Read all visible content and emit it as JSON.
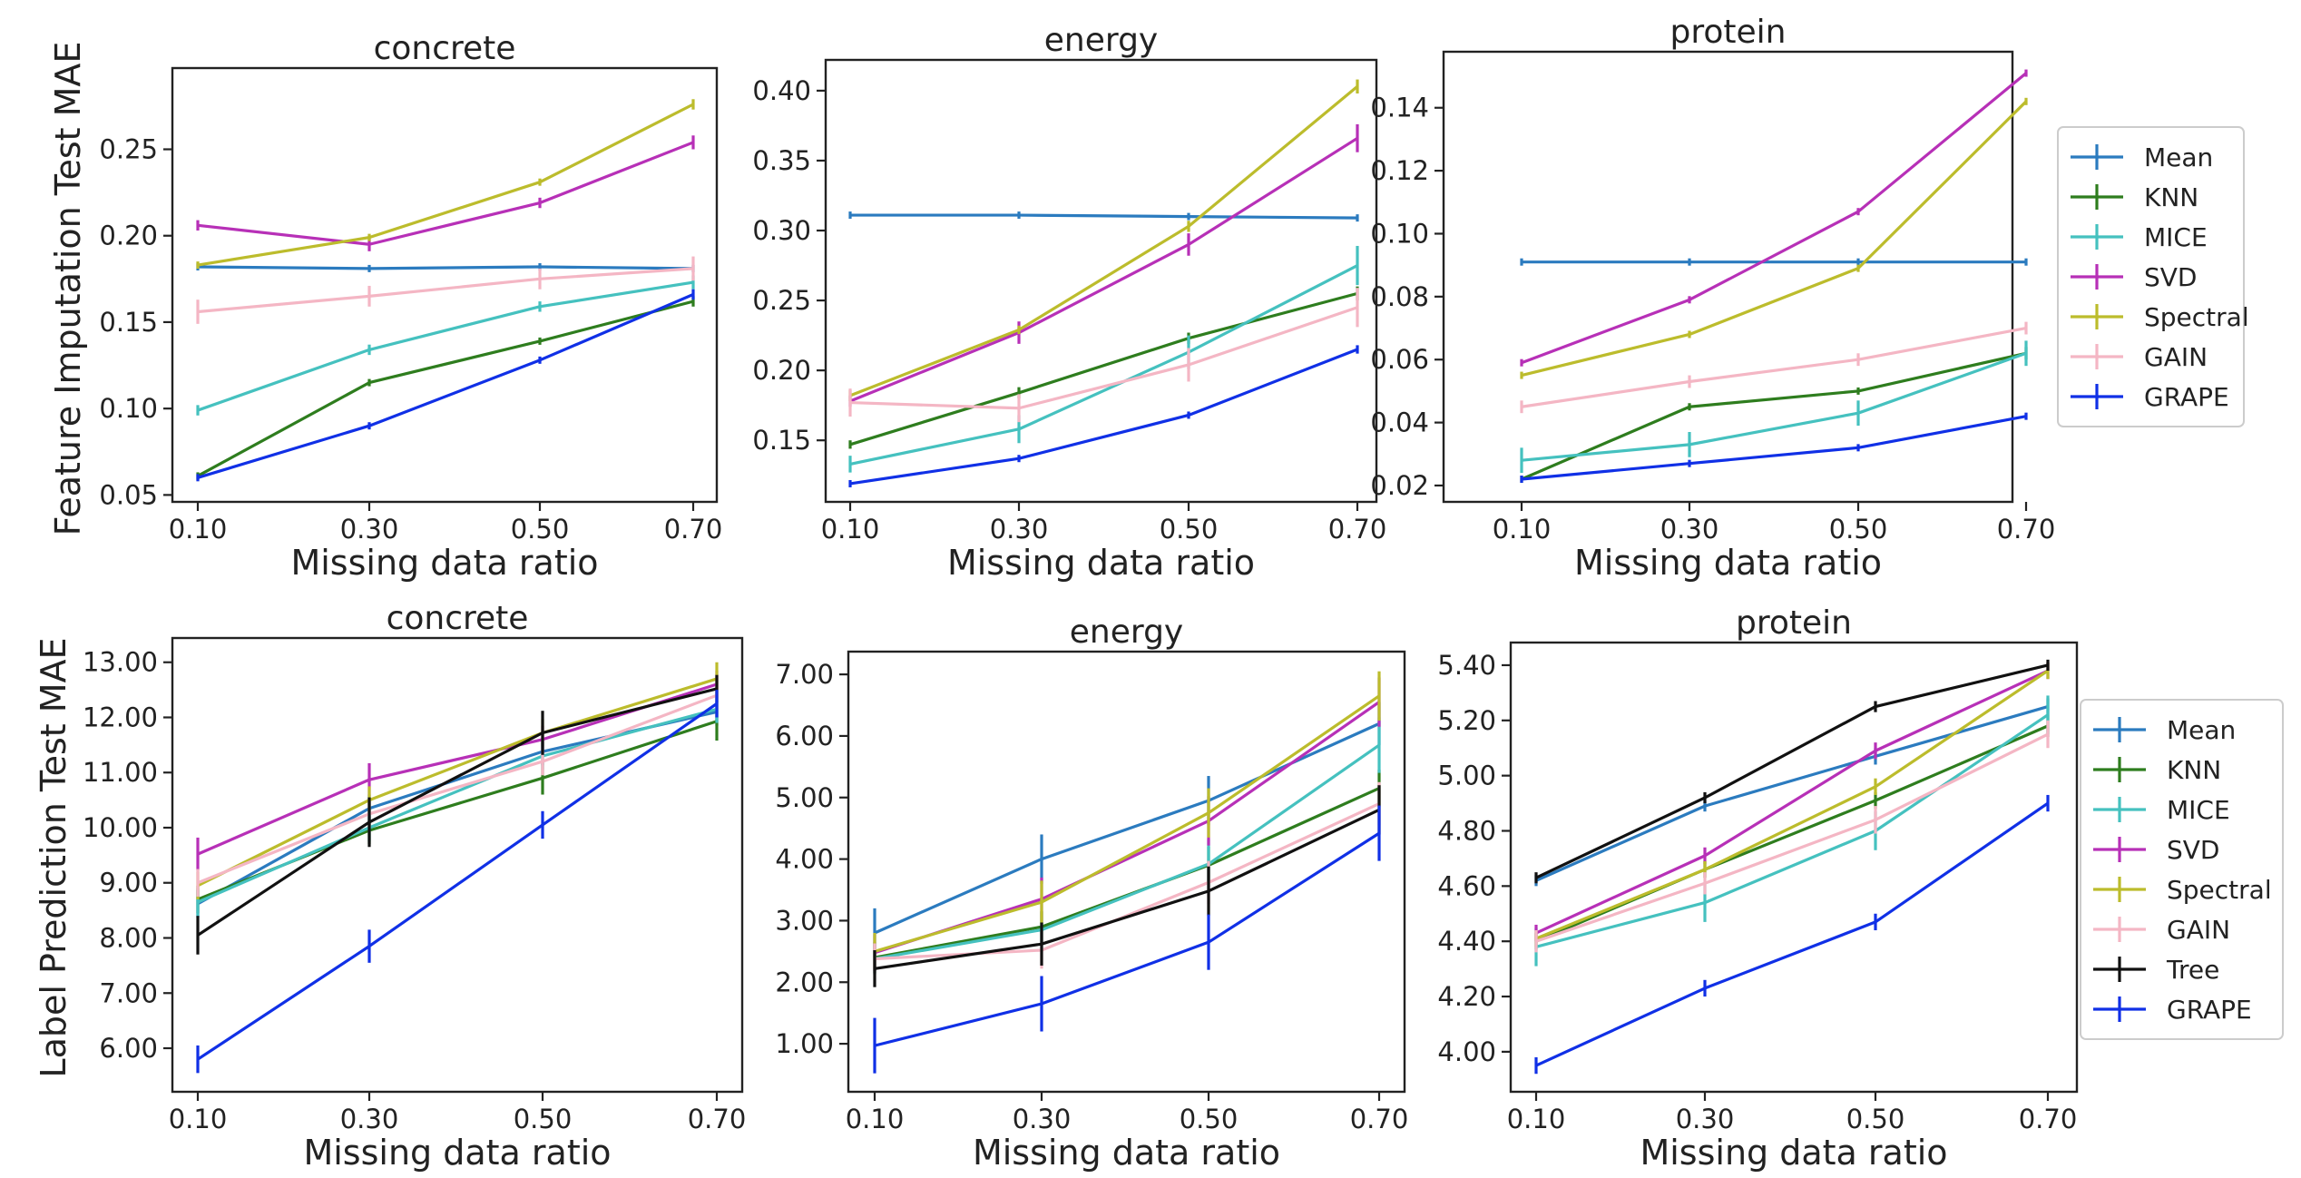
{
  "figure": {
    "row_ylabels": [
      "Feature Imputation Test MAE",
      "Label Prediction Test MAE"
    ]
  },
  "series_colors": {
    "Mean": "#2b7bbf",
    "KNN": "#2e7d1e",
    "MICE": "#45c1bf",
    "SVD": "#b730b7",
    "Spectral": "#bcbc2c",
    "GAIN": "#f4b6c4",
    "Tree": "#111111",
    "GRAPE": "#1030e6"
  },
  "chart_data": [
    {
      "type": "line",
      "title": "concrete",
      "xlabel": "Missing data ratio",
      "ylabel": "Feature Imputation Test MAE",
      "x": [
        0.1,
        0.3,
        0.5,
        0.7
      ],
      "x_ticks": [
        "0.10",
        "0.30",
        "0.50",
        "0.70"
      ],
      "ylim": [
        0.046,
        0.297
      ],
      "y_ticks": [
        "0.05",
        "0.10",
        "0.15",
        "0.20",
        "0.25"
      ],
      "grid": false,
      "series": [
        {
          "name": "Mean",
          "values": [
            0.182,
            0.181,
            0.182,
            0.181
          ],
          "errors": [
            0.002,
            0.001,
            0.001,
            0.001
          ]
        },
        {
          "name": "KNN",
          "values": [
            0.061,
            0.115,
            0.139,
            0.162
          ],
          "errors": [
            0.002,
            0.002,
            0.002,
            0.003
          ]
        },
        {
          "name": "MICE",
          "values": [
            0.099,
            0.134,
            0.159,
            0.173
          ],
          "errors": [
            0.003,
            0.003,
            0.003,
            0.004
          ]
        },
        {
          "name": "SVD",
          "values": [
            0.206,
            0.195,
            0.219,
            0.254
          ],
          "errors": [
            0.003,
            0.004,
            0.003,
            0.004
          ]
        },
        {
          "name": "Spectral",
          "values": [
            0.183,
            0.199,
            0.231,
            0.276
          ],
          "errors": [
            0.002,
            0.002,
            0.002,
            0.003
          ]
        },
        {
          "name": "GAIN",
          "values": [
            0.156,
            0.165,
            0.175,
            0.181
          ],
          "errors": [
            0.007,
            0.006,
            0.006,
            0.007
          ]
        },
        {
          "name": "GRAPE",
          "values": [
            0.06,
            0.09,
            0.128,
            0.166
          ],
          "errors": [
            0.002,
            0.002,
            0.002,
            0.003
          ]
        }
      ]
    },
    {
      "type": "line",
      "title": "energy",
      "xlabel": "Missing data ratio",
      "ylabel": "",
      "x": [
        0.1,
        0.3,
        0.5,
        0.7
      ],
      "x_ticks": [
        "0.10",
        "0.30",
        "0.50",
        "0.70"
      ],
      "ylim": [
        0.106,
        0.422
      ],
      "y_ticks": [
        "0.15",
        "0.20",
        "0.25",
        "0.30",
        "0.35",
        "0.40"
      ],
      "grid": false,
      "series": [
        {
          "name": "Mean",
          "values": [
            0.311,
            0.311,
            0.31,
            0.309
          ],
          "errors": [
            0.002,
            0.002,
            0.002,
            0.002
          ]
        },
        {
          "name": "KNN",
          "values": [
            0.147,
            0.184,
            0.223,
            0.255
          ],
          "errors": [
            0.003,
            0.004,
            0.004,
            0.005
          ]
        },
        {
          "name": "MICE",
          "values": [
            0.133,
            0.158,
            0.213,
            0.275
          ],
          "errors": [
            0.006,
            0.01,
            0.012,
            0.014
          ]
        },
        {
          "name": "SVD",
          "values": [
            0.178,
            0.227,
            0.29,
            0.366
          ],
          "errors": [
            0.004,
            0.008,
            0.008,
            0.01
          ]
        },
        {
          "name": "Spectral",
          "values": [
            0.182,
            0.229,
            0.303,
            0.403
          ],
          "errors": [
            0.004,
            0.003,
            0.004,
            0.005
          ]
        },
        {
          "name": "GAIN",
          "values": [
            0.177,
            0.173,
            0.204,
            0.245
          ],
          "errors": [
            0.01,
            0.01,
            0.012,
            0.014
          ]
        },
        {
          "name": "GRAPE",
          "values": [
            0.119,
            0.137,
            0.168,
            0.215
          ],
          "errors": [
            0.002,
            0.002,
            0.002,
            0.003
          ]
        }
      ]
    },
    {
      "type": "line",
      "title": "protein",
      "xlabel": "Missing data ratio",
      "ylabel": "",
      "x": [
        0.1,
        0.3,
        0.5,
        0.7
      ],
      "x_ticks": [
        "0.10",
        "0.30",
        "0.50",
        "0.70"
      ],
      "ylim": [
        0.0148,
        0.1578
      ],
      "y_ticks": [
        "0.02",
        "0.04",
        "0.06",
        "0.08",
        "0.10",
        "0.12",
        "0.14"
      ],
      "grid": false,
      "series": [
        {
          "name": "Mean",
          "values": [
            0.091,
            0.091,
            0.091,
            0.091
          ],
          "errors": [
            0.0005,
            0.0005,
            0.0005,
            0.0005
          ]
        },
        {
          "name": "KNN",
          "values": [
            0.022,
            0.045,
            0.05,
            0.062
          ],
          "errors": [
            0.001,
            0.001,
            0.001,
            0.002
          ]
        },
        {
          "name": "MICE",
          "values": [
            0.028,
            0.033,
            0.043,
            0.062
          ],
          "errors": [
            0.004,
            0.004,
            0.004,
            0.004
          ]
        },
        {
          "name": "SVD",
          "values": [
            0.059,
            0.079,
            0.107,
            0.151
          ],
          "errors": [
            0.0005,
            0.0005,
            0.0005,
            0.0005
          ]
        },
        {
          "name": "Spectral",
          "values": [
            0.055,
            0.068,
            0.089,
            0.142
          ],
          "errors": [
            0.0005,
            0.0005,
            0.0005,
            0.0005
          ]
        },
        {
          "name": "GAIN",
          "values": [
            0.045,
            0.053,
            0.06,
            0.07
          ],
          "errors": [
            0.002,
            0.002,
            0.002,
            0.002
          ]
        },
        {
          "name": "GRAPE",
          "values": [
            0.022,
            0.027,
            0.032,
            0.042
          ],
          "errors": [
            0.0005,
            0.0005,
            0.0005,
            0.0005
          ]
        }
      ]
    },
    {
      "type": "line",
      "title": "concrete",
      "xlabel": "Missing data ratio",
      "ylabel": "Label Prediction Test MAE",
      "x": [
        0.1,
        0.3,
        0.5,
        0.7
      ],
      "x_ticks": [
        "0.10",
        "0.30",
        "0.50",
        "0.70"
      ],
      "ylim": [
        5.21,
        13.44
      ],
      "y_ticks": [
        "6.00",
        "7.00",
        "8.00",
        "9.00",
        "10.00",
        "11.00",
        "12.00",
        "13.00"
      ],
      "grid": false,
      "series": [
        {
          "name": "Mean",
          "values": [
            8.62,
            10.35,
            11.38,
            12.1
          ],
          "errors": [
            0.25,
            0.25,
            0.25,
            0.25
          ]
        },
        {
          "name": "KNN",
          "values": [
            8.7,
            9.95,
            10.9,
            11.93
          ],
          "errors": [
            0.25,
            0.25,
            0.3,
            0.35
          ]
        },
        {
          "name": "MICE",
          "values": [
            8.65,
            10.0,
            11.3,
            12.15
          ],
          "errors": [
            0.25,
            0.25,
            0.25,
            0.25
          ]
        },
        {
          "name": "SVD",
          "values": [
            9.52,
            10.87,
            11.6,
            12.6
          ],
          "errors": [
            0.3,
            0.3,
            0.25,
            0.25
          ]
        },
        {
          "name": "Spectral",
          "values": [
            8.95,
            10.5,
            11.72,
            12.7
          ],
          "errors": [
            0.25,
            0.25,
            0.25,
            0.3
          ]
        },
        {
          "name": "GAIN",
          "values": [
            9.0,
            10.25,
            11.2,
            12.4
          ],
          "errors": [
            0.25,
            0.25,
            0.25,
            0.25
          ]
        },
        {
          "name": "Tree",
          "values": [
            8.05,
            10.1,
            11.72,
            12.52
          ],
          "errors": [
            0.35,
            0.45,
            0.4,
            0.25
          ]
        },
        {
          "name": "GRAPE",
          "values": [
            5.8,
            7.85,
            10.05,
            12.25
          ],
          "errors": [
            0.25,
            0.3,
            0.25,
            0.25
          ]
        }
      ]
    },
    {
      "type": "line",
      "title": "energy",
      "xlabel": "Missing data ratio",
      "ylabel": "",
      "x": [
        0.1,
        0.3,
        0.5,
        0.7
      ],
      "x_ticks": [
        "0.10",
        "0.30",
        "0.50",
        "0.70"
      ],
      "ylim": [
        0.22,
        7.37
      ],
      "y_ticks": [
        "1.00",
        "2.00",
        "3.00",
        "4.00",
        "5.00",
        "6.00",
        "7.00"
      ],
      "grid": false,
      "series": [
        {
          "name": "Mean",
          "values": [
            2.8,
            4.0,
            4.95,
            6.2
          ],
          "errors": [
            0.4,
            0.4,
            0.4,
            0.35
          ]
        },
        {
          "name": "KNN",
          "values": [
            2.4,
            2.9,
            3.9,
            5.15
          ],
          "errors": [
            0.25,
            0.25,
            0.3,
            0.3
          ]
        },
        {
          "name": "MICE",
          "values": [
            2.38,
            2.85,
            3.92,
            5.85
          ],
          "errors": [
            0.25,
            0.3,
            0.4,
            0.45
          ]
        },
        {
          "name": "SVD",
          "values": [
            2.48,
            3.35,
            4.62,
            6.55
          ],
          "errors": [
            0.3,
            0.35,
            0.4,
            0.4
          ]
        },
        {
          "name": "Spectral",
          "values": [
            2.5,
            3.3,
            4.75,
            6.65
          ],
          "errors": [
            0.3,
            0.35,
            0.4,
            0.4
          ]
        },
        {
          "name": "GAIN",
          "values": [
            2.38,
            2.52,
            3.62,
            4.9
          ],
          "errors": [
            0.25,
            0.3,
            0.35,
            0.35
          ]
        },
        {
          "name": "Tree",
          "values": [
            2.22,
            2.62,
            3.48,
            4.8
          ],
          "errors": [
            0.3,
            0.35,
            0.4,
            0.4
          ]
        },
        {
          "name": "GRAPE",
          "values": [
            0.97,
            1.65,
            2.65,
            4.42
          ],
          "errors": [
            0.45,
            0.45,
            0.45,
            0.45
          ]
        }
      ]
    },
    {
      "type": "line",
      "title": "protein",
      "xlabel": "Missing data ratio",
      "ylabel": "",
      "x": [
        0.1,
        0.3,
        0.5,
        0.7
      ],
      "x_ticks": [
        "0.10",
        "0.30",
        "0.50",
        "0.70"
      ],
      "ylim": [
        3.855,
        5.482
      ],
      "y_ticks": [
        "4.00",
        "4.20",
        "4.40",
        "4.60",
        "4.80",
        "5.00",
        "5.20",
        "5.40"
      ],
      "grid": false,
      "series": [
        {
          "name": "Mean",
          "values": [
            4.62,
            4.89,
            5.07,
            5.25
          ],
          "errors": [
            0.02,
            0.02,
            0.03,
            0.03
          ]
        },
        {
          "name": "KNN",
          "values": [
            4.4,
            4.66,
            4.91,
            5.18
          ],
          "errors": [
            0.03,
            0.03,
            0.03,
            0.04
          ]
        },
        {
          "name": "MICE",
          "values": [
            4.38,
            4.54,
            4.8,
            5.22
          ],
          "errors": [
            0.07,
            0.07,
            0.07,
            0.07
          ]
        },
        {
          "name": "SVD",
          "values": [
            4.43,
            4.71,
            5.09,
            5.38
          ],
          "errors": [
            0.03,
            0.03,
            0.03,
            0.03
          ]
        },
        {
          "name": "Spectral",
          "values": [
            4.41,
            4.66,
            4.96,
            5.38
          ],
          "errors": [
            0.03,
            0.03,
            0.03,
            0.03
          ]
        },
        {
          "name": "GAIN",
          "values": [
            4.4,
            4.61,
            4.84,
            5.15
          ],
          "errors": [
            0.04,
            0.04,
            0.05,
            0.05
          ]
        },
        {
          "name": "Tree",
          "values": [
            4.63,
            4.92,
            5.25,
            5.4
          ],
          "errors": [
            0.02,
            0.02,
            0.02,
            0.02
          ]
        },
        {
          "name": "GRAPE",
          "values": [
            3.95,
            4.23,
            4.47,
            4.9
          ],
          "errors": [
            0.03,
            0.03,
            0.03,
            0.03
          ]
        }
      ]
    }
  ],
  "legends": [
    {
      "entries": [
        "Mean",
        "KNN",
        "MICE",
        "SVD",
        "Spectral",
        "GAIN",
        "GRAPE"
      ]
    },
    {
      "entries": [
        "Mean",
        "KNN",
        "MICE",
        "SVD",
        "Spectral",
        "GAIN",
        "Tree",
        "GRAPE"
      ]
    }
  ]
}
